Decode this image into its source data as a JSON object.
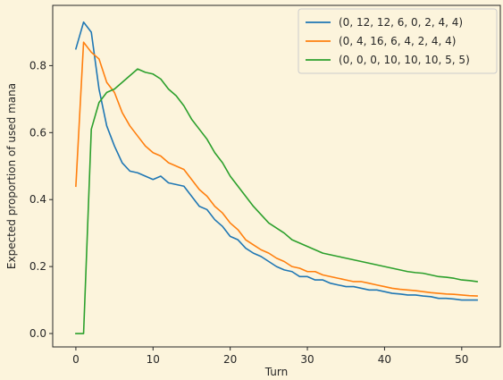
{
  "chart_data": {
    "type": "line",
    "title": "",
    "xlabel": "Turn",
    "ylabel": "Expected proportion of used mana",
    "xlim": [
      -3,
      55
    ],
    "ylim": [
      -0.04,
      0.98
    ],
    "xticks": [
      0,
      10,
      20,
      30,
      40,
      50
    ],
    "yticks": [
      0.0,
      0.2,
      0.4,
      0.6,
      0.8
    ],
    "ytick_labels": [
      "0.0",
      "0.2",
      "0.4",
      "0.6",
      "0.8"
    ],
    "grid": false,
    "legend_position": "top-right",
    "x": [
      0,
      1,
      2,
      3,
      4,
      5,
      6,
      7,
      8,
      9,
      10,
      11,
      12,
      13,
      14,
      15,
      16,
      17,
      18,
      19,
      20,
      21,
      22,
      23,
      24,
      25,
      26,
      27,
      28,
      29,
      30,
      31,
      32,
      33,
      34,
      35,
      36,
      37,
      38,
      39,
      40,
      41,
      42,
      43,
      44,
      45,
      46,
      47,
      48,
      49,
      50,
      51,
      52
    ],
    "series": [
      {
        "name": "(0, 12, 12, 6, 0, 2, 4, 4)",
        "color": "#1f77b4",
        "values": [
          0.85,
          0.93,
          0.9,
          0.73,
          0.62,
          0.56,
          0.51,
          0.485,
          0.48,
          0.47,
          0.46,
          0.47,
          0.45,
          0.445,
          0.44,
          0.41,
          0.38,
          0.37,
          0.34,
          0.32,
          0.29,
          0.28,
          0.255,
          0.24,
          0.23,
          0.215,
          0.2,
          0.19,
          0.185,
          0.17,
          0.17,
          0.16,
          0.16,
          0.15,
          0.145,
          0.14,
          0.14,
          0.135,
          0.13,
          0.13,
          0.125,
          0.12,
          0.118,
          0.115,
          0.115,
          0.112,
          0.11,
          0.105,
          0.105,
          0.103,
          0.1,
          0.1,
          0.1
        ]
      },
      {
        "name": "(0, 4, 16, 6, 4, 2, 4, 4)",
        "color": "#ff7f0e",
        "values": [
          0.44,
          0.87,
          0.84,
          0.82,
          0.75,
          0.72,
          0.66,
          0.62,
          0.59,
          0.56,
          0.54,
          0.53,
          0.51,
          0.5,
          0.49,
          0.46,
          0.43,
          0.41,
          0.38,
          0.36,
          0.33,
          0.31,
          0.28,
          0.265,
          0.25,
          0.24,
          0.225,
          0.215,
          0.2,
          0.195,
          0.185,
          0.185,
          0.175,
          0.17,
          0.165,
          0.16,
          0.155,
          0.155,
          0.15,
          0.145,
          0.14,
          0.135,
          0.132,
          0.13,
          0.128,
          0.125,
          0.122,
          0.12,
          0.118,
          0.117,
          0.115,
          0.113,
          0.112
        ]
      },
      {
        "name": "(0, 0, 0, 10, 10, 10, 5, 5)",
        "color": "#2ca02c",
        "values": [
          0.0,
          0.0,
          0.61,
          0.69,
          0.72,
          0.73,
          0.75,
          0.77,
          0.79,
          0.78,
          0.775,
          0.76,
          0.73,
          0.71,
          0.68,
          0.64,
          0.61,
          0.58,
          0.54,
          0.51,
          0.47,
          0.44,
          0.41,
          0.38,
          0.355,
          0.33,
          0.315,
          0.3,
          0.28,
          0.27,
          0.26,
          0.25,
          0.24,
          0.235,
          0.23,
          0.225,
          0.22,
          0.215,
          0.21,
          0.205,
          0.2,
          0.195,
          0.19,
          0.185,
          0.182,
          0.18,
          0.175,
          0.17,
          0.168,
          0.165,
          0.16,
          0.158,
          0.155
        ]
      }
    ]
  }
}
